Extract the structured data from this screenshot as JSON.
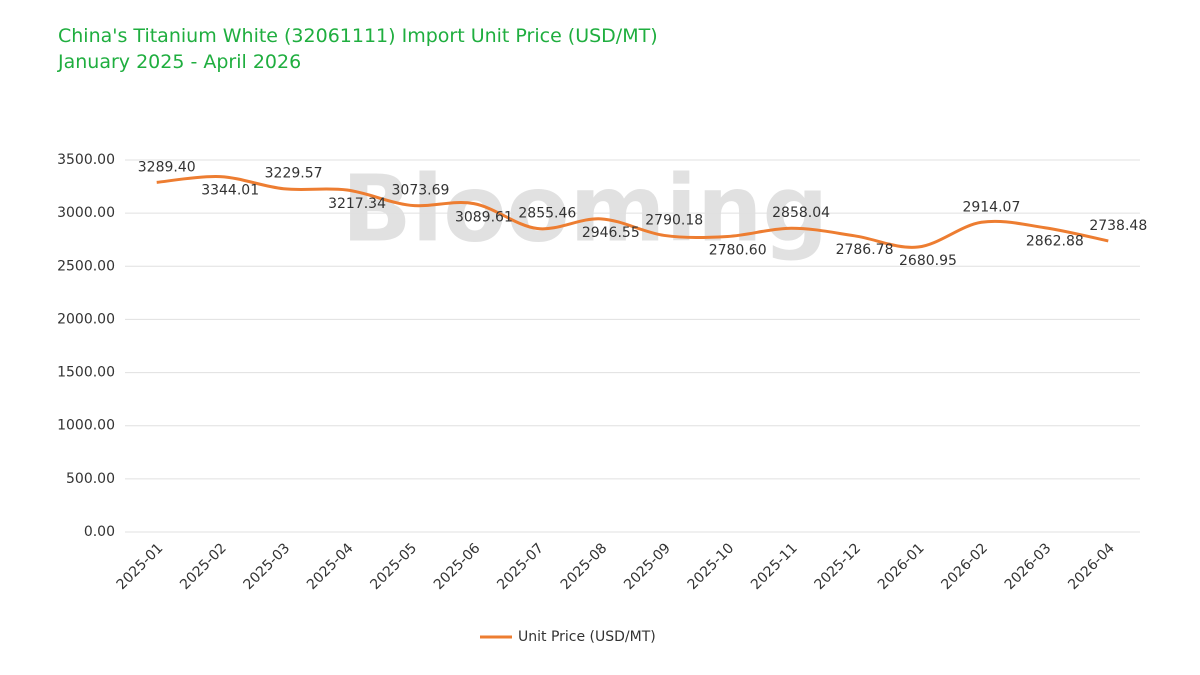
{
  "chart_data": {
    "type": "line",
    "title": "China's Titanium White (32061111) Import Unit Price (USD/MT)",
    "subtitle": "January 2025 - April 2026",
    "watermark": "Blooming",
    "categories": [
      "2025-01",
      "2025-02",
      "2025-03",
      "2025-04",
      "2025-05",
      "2025-06",
      "2025-07",
      "2025-08",
      "2025-09",
      "2025-10",
      "2025-11",
      "2025-12",
      "2026-01",
      "2026-02",
      "2026-03",
      "2026-04"
    ],
    "series": [
      {
        "name": "Unit Price (USD/MT)",
        "color": "#ed7d31",
        "values": [
          3289.4,
          3344.01,
          3229.57,
          3217.34,
          3073.69,
          3089.61,
          2855.46,
          2946.55,
          2790.18,
          2780.6,
          2858.04,
          2786.78,
          2680.95,
          2914.07,
          2862.88,
          2738.48
        ],
        "value_labels": [
          "3289.40",
          "3344.01",
          "3229.57",
          "3217.34",
          "3073.69",
          "3089.61",
          "2855.46",
          "2946.55",
          "2790.18",
          "2780.60",
          "2858.04",
          "2786.78",
          "2680.95",
          "2914.07",
          "2862.88",
          "2738.48"
        ]
      }
    ],
    "ylim": [
      0,
      3500
    ],
    "yticks": [
      {
        "value": 0,
        "label": "0.00"
      },
      {
        "value": 500,
        "label": "500.00"
      },
      {
        "value": 1000,
        "label": "1000.00"
      },
      {
        "value": 1500,
        "label": "1500.00"
      },
      {
        "value": 2000,
        "label": "2000.00"
      },
      {
        "value": 2500,
        "label": "2500.00"
      },
      {
        "value": 3000,
        "label": "3000.00"
      },
      {
        "value": 3500,
        "label": "3500.00"
      }
    ],
    "grid": true,
    "legend": "bottom"
  }
}
